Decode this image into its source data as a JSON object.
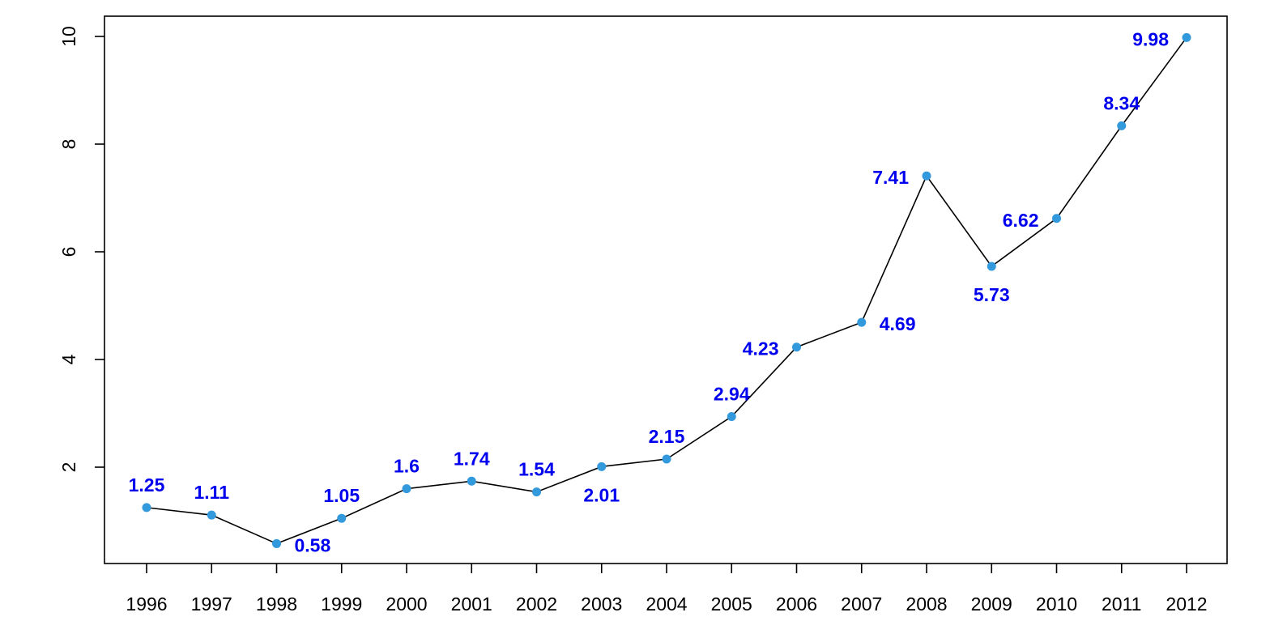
{
  "chart_data": {
    "type": "line",
    "title": "",
    "xlabel": "",
    "ylabel": "",
    "categories": [
      "1996",
      "1997",
      "1998",
      "1999",
      "2000",
      "2001",
      "2002",
      "2003",
      "2004",
      "2005",
      "2006",
      "2007",
      "2008",
      "2009",
      "2010",
      "2011",
      "2012"
    ],
    "series": [
      {
        "values": [
          1.25,
          1.11,
          0.58,
          1.05,
          1.6,
          1.74,
          1.54,
          2.01,
          2.15,
          2.94,
          4.23,
          4.69,
          7.41,
          5.73,
          6.62,
          8.34,
          9.98
        ]
      }
    ],
    "data_labels": [
      "1.25",
      "1.11",
      "0.58",
      "1.05",
      "1.6",
      "1.74",
      "1.54",
      "2.01",
      "2.15",
      "2.94",
      "4.23",
      "4.69",
      "7.41",
      "5.73",
      "6.62",
      "8.34",
      "9.98"
    ],
    "label_placement": [
      "above",
      "above",
      "right",
      "above",
      "above",
      "above",
      "above",
      "below",
      "above",
      "above",
      "left",
      "right",
      "left",
      "below",
      "left",
      "above",
      "left"
    ],
    "y_ticks": [
      "2",
      "4",
      "6",
      "8",
      "10"
    ],
    "ylim": [
      0.58,
      9.98
    ],
    "grid": false,
    "legend": "none",
    "colors": {
      "line": "#000000",
      "point": "#3399dd",
      "label": "#0000ee",
      "axis": "#000000"
    }
  }
}
